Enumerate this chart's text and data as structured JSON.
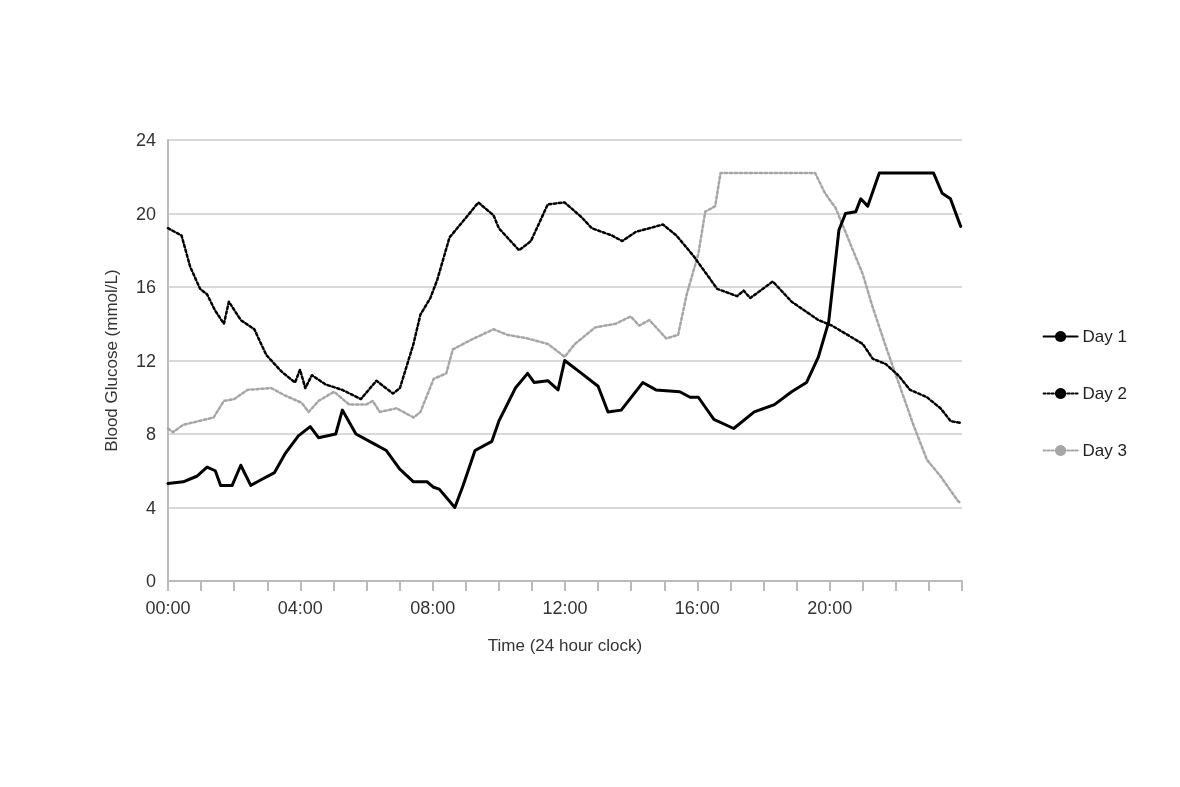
{
  "chart_data": {
    "type": "line",
    "xlabel": "Time (24 hour clock)",
    "ylabel": "Blood Glucose (mmol/L)",
    "xlim": [
      0,
      24
    ],
    "xticks": [
      {
        "value": 0,
        "label": "00:00"
      },
      {
        "value": 1,
        "label": null
      },
      {
        "value": 2,
        "label": null
      },
      {
        "value": 3,
        "label": null
      },
      {
        "value": 4,
        "label": "04:00"
      },
      {
        "value": 5,
        "label": null
      },
      {
        "value": 6,
        "label": null
      },
      {
        "value": 7,
        "label": null
      },
      {
        "value": 8,
        "label": "08:00"
      },
      {
        "value": 9,
        "label": null
      },
      {
        "value": 10,
        "label": null
      },
      {
        "value": 11,
        "label": null
      },
      {
        "value": 12,
        "label": "12:00"
      },
      {
        "value": 13,
        "label": null
      },
      {
        "value": 14,
        "label": null
      },
      {
        "value": 15,
        "label": null
      },
      {
        "value": 16,
        "label": "16:00"
      },
      {
        "value": 17,
        "label": null
      },
      {
        "value": 18,
        "label": null
      },
      {
        "value": 19,
        "label": null
      },
      {
        "value": 20,
        "label": "20:00"
      },
      {
        "value": 21,
        "label": null
      },
      {
        "value": 22,
        "label": null
      },
      {
        "value": 23,
        "label": null
      },
      {
        "value": 24,
        "label": null
      }
    ],
    "ylim": [
      0,
      24
    ],
    "yticks": [
      0,
      4,
      8,
      12,
      16,
      20,
      24
    ],
    "grid": "y",
    "legend": "right",
    "marker": "none",
    "series": [
      {
        "name": "Day 1",
        "color": "#000000",
        "line_style": "solid",
        "x": [
          0,
          0.46,
          0.87,
          1.18,
          1.43,
          1.59,
          1.94,
          2.2,
          2.5,
          2.8,
          3.22,
          3.53,
          3.94,
          4.3,
          4.55,
          5.07,
          5.27,
          5.68,
          6.19,
          6.6,
          7.0,
          7.42,
          7.83,
          8.03,
          8.2,
          8.67,
          8.92,
          9.28,
          9.79,
          10.0,
          10.5,
          10.87,
          11.07,
          11.48,
          11.79,
          11.99,
          12.5,
          13.0,
          13.3,
          13.7,
          14.35,
          14.75,
          15.47,
          15.78,
          16.03,
          16.5,
          17.1,
          17.72,
          18.33,
          18.85,
          19.3,
          19.66,
          19.97,
          20.28,
          20.48,
          20.79,
          20.94,
          21.15,
          21.5,
          23.14,
          23.4,
          23.65,
          23.96
        ],
        "values": [
          5.3,
          5.4,
          5.7,
          6.2,
          6.0,
          5.2,
          5.2,
          6.3,
          5.2,
          5.5,
          5.9,
          6.9,
          7.9,
          8.4,
          7.8,
          8.0,
          9.3,
          8.0,
          7.5,
          7.1,
          6.1,
          5.4,
          5.4,
          5.1,
          5.0,
          4.0,
          5.2,
          7.1,
          7.6,
          8.7,
          10.5,
          11.3,
          10.8,
          10.9,
          10.4,
          12.0,
          11.3,
          10.6,
          9.2,
          9.3,
          10.8,
          10.4,
          10.3,
          10.0,
          10.0,
          8.8,
          8.3,
          9.2,
          9.6,
          10.3,
          10.8,
          12.2,
          14.1,
          19.1,
          20.0,
          20.1,
          20.8,
          20.4,
          22.2,
          22.2,
          21.1,
          20.8,
          19.3
        ]
      },
      {
        "name": "Day 2",
        "color": "#000000",
        "line_style": "dotted",
        "x": [
          0,
          0.41,
          0.67,
          0.97,
          1.18,
          1.43,
          1.69,
          1.84,
          2.2,
          2.61,
          2.97,
          3.43,
          3.84,
          3.99,
          4.15,
          4.35,
          4.76,
          5.27,
          5.83,
          6.3,
          6.8,
          7.01,
          7.42,
          7.63,
          7.93,
          8.14,
          8.51,
          9.02,
          9.38,
          9.84,
          10.0,
          10.61,
          10.97,
          11.48,
          11.99,
          12.5,
          12.81,
          13.42,
          13.73,
          14.14,
          14.96,
          15.37,
          15.88,
          16.08,
          16.6,
          17.2,
          17.4,
          17.6,
          18.28,
          18.85,
          19.66,
          20.07,
          21.0,
          21.3,
          21.7,
          22.07,
          22.43,
          22.94,
          23.35,
          23.66,
          23.96
        ],
        "values": [
          19.2,
          18.8,
          17.1,
          15.9,
          15.6,
          14.7,
          14.0,
          15.2,
          14.2,
          13.7,
          12.3,
          11.4,
          10.8,
          11.5,
          10.5,
          11.2,
          10.7,
          10.4,
          9.9,
          10.9,
          10.2,
          10.5,
          12.9,
          14.5,
          15.4,
          16.4,
          18.7,
          19.8,
          20.6,
          19.9,
          19.2,
          18.0,
          18.5,
          20.5,
          20.6,
          19.8,
          19.2,
          18.8,
          18.5,
          19.0,
          19.4,
          18.8,
          17.7,
          17.2,
          15.9,
          15.5,
          15.8,
          15.4,
          16.3,
          15.2,
          14.2,
          13.9,
          12.9,
          12.1,
          11.8,
          11.2,
          10.4,
          10.0,
          9.4,
          8.7,
          8.6
        ]
      },
      {
        "name": "Day 3",
        "color": "#a6a6a6",
        "line_style": "dotted",
        "x": [
          0,
          0.15,
          0.46,
          1.38,
          1.69,
          2.0,
          2.4,
          3.12,
          3.53,
          4.04,
          4.25,
          4.55,
          5.02,
          5.48,
          5.99,
          6.19,
          6.4,
          6.91,
          7.42,
          7.63,
          8.03,
          8.41,
          8.61,
          9.13,
          9.84,
          10.25,
          10.87,
          11.48,
          11.99,
          12.3,
          12.91,
          13.53,
          13.99,
          14.24,
          14.55,
          15.06,
          15.42,
          15.68,
          16.03,
          16.24,
          16.54,
          16.7,
          19.56,
          19.86,
          20.18,
          20.59,
          21.0,
          21.3,
          21.71,
          22.12,
          22.53,
          22.94,
          23.35,
          23.86,
          23.96
        ],
        "values": [
          8.3,
          8.1,
          8.5,
          8.9,
          9.8,
          9.9,
          10.4,
          10.5,
          10.1,
          9.7,
          9.2,
          9.8,
          10.3,
          9.6,
          9.6,
          9.8,
          9.2,
          9.4,
          8.9,
          9.2,
          11.0,
          11.3,
          12.6,
          13.1,
          13.7,
          13.4,
          13.2,
          12.9,
          12.2,
          12.9,
          13.8,
          14.0,
          14.4,
          13.9,
          14.2,
          13.2,
          13.4,
          15.6,
          17.8,
          20.1,
          20.4,
          22.2,
          22.2,
          21.1,
          20.3,
          18.5,
          16.7,
          14.9,
          12.7,
          10.6,
          8.5,
          6.6,
          5.7,
          4.4,
          4.2
        ]
      }
    ]
  }
}
